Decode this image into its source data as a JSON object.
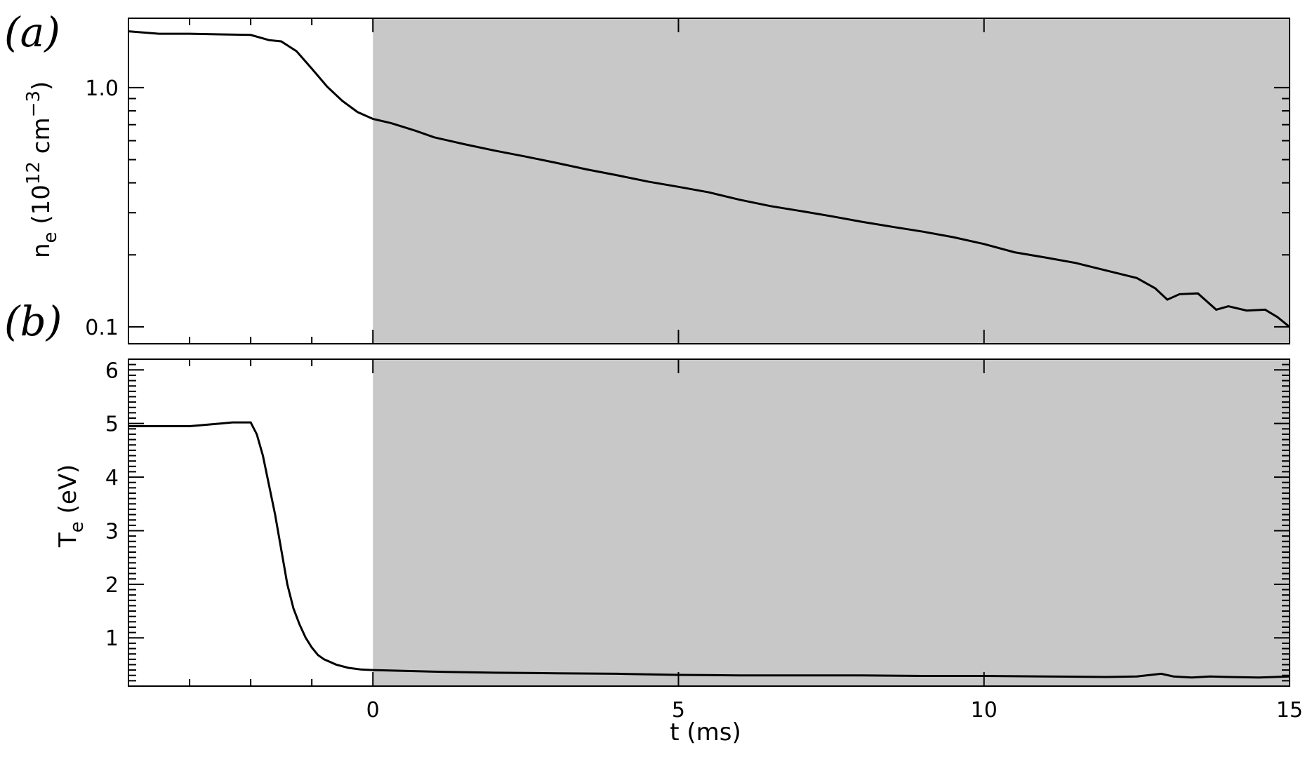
{
  "chart_data": [
    {
      "type": "line",
      "panel_label": "(a)",
      "ylabel": "n_e (10^12 cm^-3)",
      "ylabel_parts": {
        "main": "n",
        "sub": "e",
        "pre": " (10",
        "sup1": "12",
        "mid": " cm",
        "sup2": "−3",
        "post": ")"
      },
      "yscale": "log",
      "ylim": [
        0.085,
        1.95
      ],
      "xlim": [
        -4,
        15
      ],
      "major_ticks": [
        {
          "v": 0.1,
          "label": "0.1"
        },
        {
          "v": 1.0,
          "label": "1.0"
        }
      ],
      "minor_ticks": [
        0.2,
        0.3,
        0.4,
        0.5,
        0.6,
        0.7,
        0.8,
        0.9
      ],
      "shaded_region": {
        "x_start": 0,
        "x_end": 15,
        "color": "#c8c8c8"
      },
      "series": [
        {
          "x": [
            -4,
            -3.5,
            -3,
            -2.5,
            -2,
            -1.7,
            -1.5,
            -1.25,
            -1.0,
            -0.75,
            -0.5,
            -0.25,
            0,
            0.3,
            0.7,
            1.0,
            1.5,
            2.0,
            2.5,
            3.0,
            3.5,
            4.0,
            4.5,
            5.0,
            5.5,
            6.0,
            6.5,
            7.0,
            7.5,
            8.0,
            8.5,
            9.0,
            9.5,
            10.0,
            10.5,
            11.0,
            11.5,
            12.0,
            12.5,
            12.8,
            13.0,
            13.2,
            13.5,
            13.8,
            14.0,
            14.3,
            14.6,
            14.8,
            15.0
          ],
          "y": [
            1.72,
            1.68,
            1.68,
            1.67,
            1.66,
            1.58,
            1.56,
            1.42,
            1.2,
            1.01,
            0.88,
            0.79,
            0.74,
            0.71,
            0.66,
            0.62,
            0.58,
            0.545,
            0.515,
            0.485,
            0.455,
            0.43,
            0.405,
            0.385,
            0.365,
            0.34,
            0.32,
            0.305,
            0.29,
            0.275,
            0.262,
            0.25,
            0.237,
            0.222,
            0.205,
            0.195,
            0.185,
            0.172,
            0.16,
            0.145,
            0.13,
            0.137,
            0.138,
            0.118,
            0.122,
            0.117,
            0.118,
            0.11,
            0.1
          ]
        }
      ]
    },
    {
      "type": "line",
      "panel_label": "(b)",
      "ylabel": "T_e (eV)",
      "ylabel_parts": {
        "main": "T",
        "sub": "e",
        "post": " (eV)"
      },
      "yscale": "linear",
      "ylim": [
        0.1,
        6.2
      ],
      "xlim": [
        -4,
        15
      ],
      "yticks": [
        1,
        2,
        3,
        4,
        5,
        6
      ],
      "yminor_step": 0.1,
      "xticks": [
        0,
        5,
        10,
        15
      ],
      "xminor_ticks": [
        -3,
        -2,
        -1
      ],
      "xlabel": "t (ms)",
      "shaded_region": {
        "x_start": 0,
        "x_end": 15,
        "color": "#c8c8c8"
      },
      "series": [
        {
          "x": [
            -4,
            -3.5,
            -3,
            -2.5,
            -2.3,
            -2.0,
            -1.9,
            -1.8,
            -1.6,
            -1.4,
            -1.3,
            -1.2,
            -1.1,
            -1.0,
            -0.9,
            -0.8,
            -0.6,
            -0.4,
            -0.2,
            0,
            1,
            2,
            3,
            4,
            5,
            6,
            7,
            8,
            9,
            10,
            11,
            12,
            12.5,
            12.9,
            13.1,
            13.4,
            13.7,
            14.0,
            14.5,
            15.0
          ],
          "y": [
            4.95,
            4.95,
            4.95,
            5.0,
            5.02,
            5.02,
            4.8,
            4.4,
            3.3,
            2.0,
            1.55,
            1.25,
            1.0,
            0.82,
            0.68,
            0.6,
            0.5,
            0.44,
            0.41,
            0.4,
            0.37,
            0.35,
            0.34,
            0.33,
            0.31,
            0.3,
            0.3,
            0.3,
            0.29,
            0.29,
            0.28,
            0.27,
            0.28,
            0.33,
            0.28,
            0.26,
            0.28,
            0.27,
            0.26,
            0.28
          ]
        }
      ]
    }
  ]
}
